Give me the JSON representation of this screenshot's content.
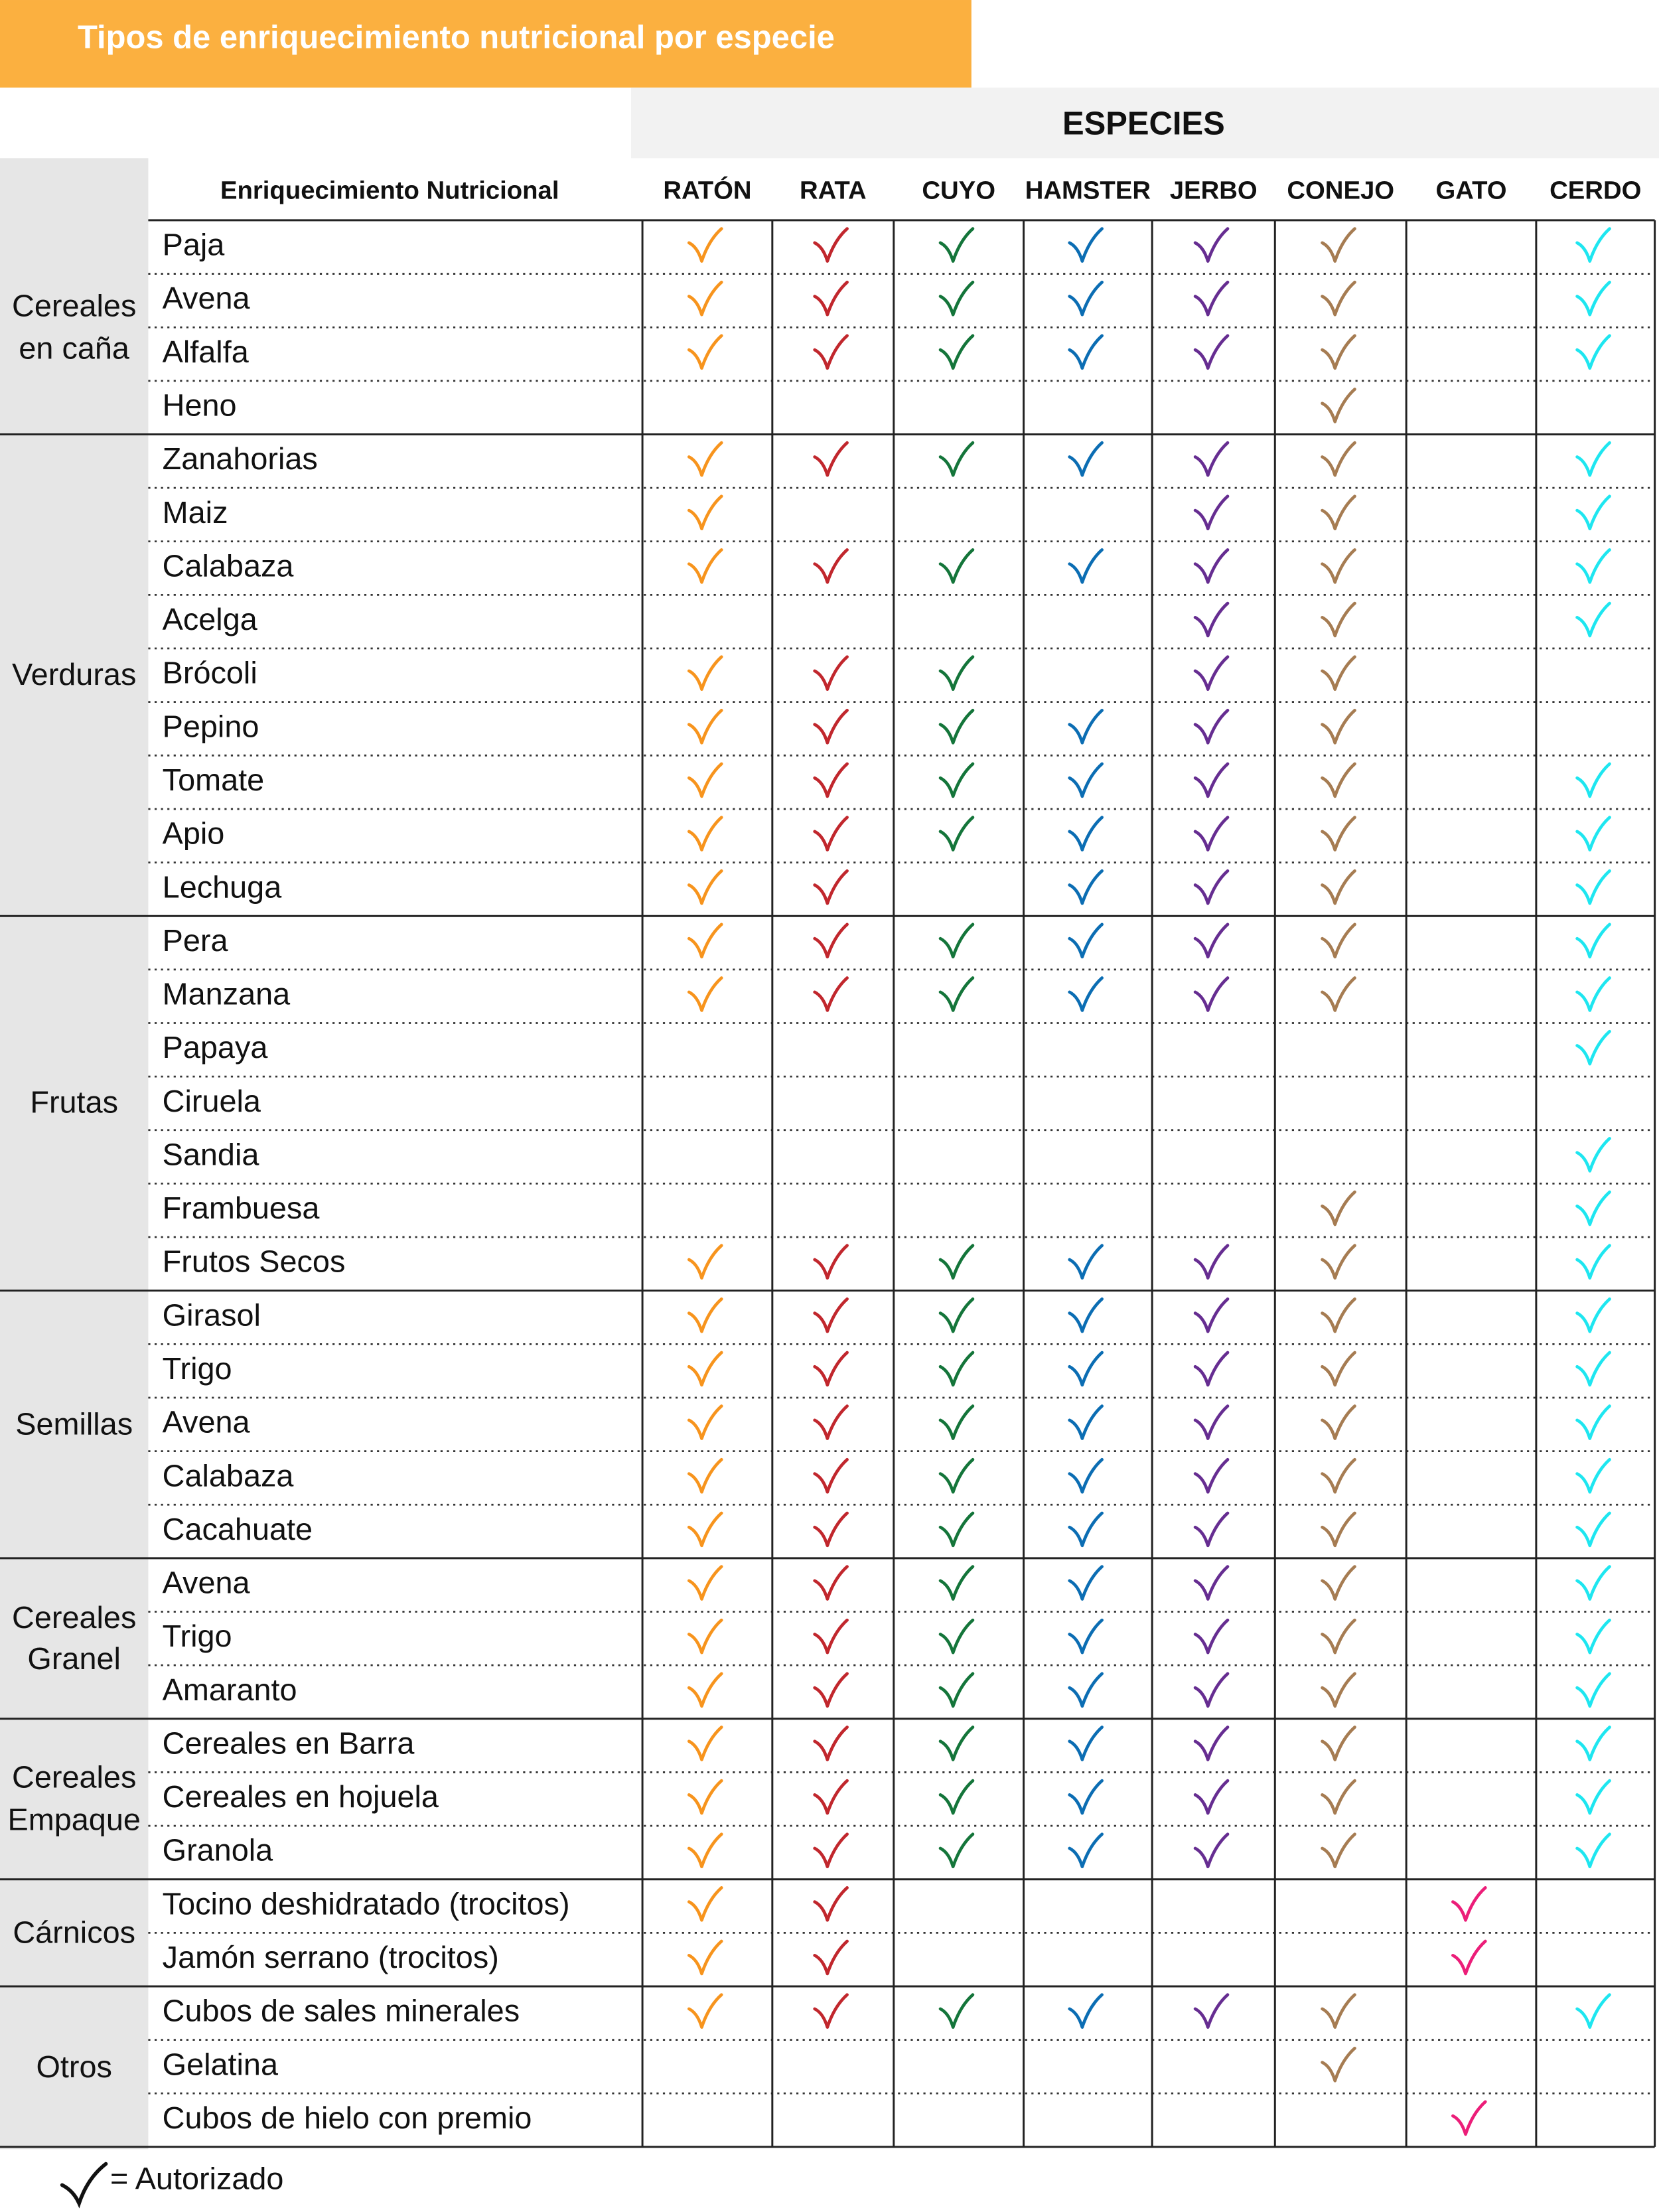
{
  "header": {
    "title": "Tipos de enriquecimiento nutricional por especie",
    "band": "ESPECIES",
    "column_title": "Enriquecimiento Nutricional"
  },
  "species": [
    {
      "name": "RATÓN",
      "color": "#f7941d"
    },
    {
      "name": "RATA",
      "color": "#c1272d"
    },
    {
      "name": "CUYO",
      "color": "#14753a"
    },
    {
      "name": "HAMSTER",
      "color": "#0b6db3"
    },
    {
      "name": "JERBO",
      "color": "#662d91"
    },
    {
      "name": "CONEJO",
      "color": "#a67c52"
    },
    {
      "name": "GATO",
      "color": "#ec1e79"
    },
    {
      "name": "CERDO",
      "color": "#1ee6f0"
    }
  ],
  "groups": [
    {
      "label": "Cereales en caña",
      "rows": [
        {
          "item": "Paja",
          "checks": [
            true,
            true,
            true,
            true,
            true,
            true,
            false,
            true
          ]
        },
        {
          "item": "Avena",
          "checks": [
            true,
            true,
            true,
            true,
            true,
            true,
            false,
            true
          ]
        },
        {
          "item": "Alfalfa",
          "checks": [
            true,
            true,
            true,
            true,
            true,
            true,
            false,
            true
          ]
        },
        {
          "item": "Heno",
          "checks": [
            false,
            false,
            false,
            false,
            false,
            true,
            false,
            false
          ]
        }
      ]
    },
    {
      "label": "Verduras",
      "rows": [
        {
          "item": "Zanahorias",
          "checks": [
            true,
            true,
            true,
            true,
            true,
            true,
            false,
            true
          ]
        },
        {
          "item": "Maiz",
          "checks": [
            true,
            false,
            false,
            false,
            true,
            true,
            false,
            true
          ]
        },
        {
          "item": "Calabaza",
          "checks": [
            true,
            true,
            true,
            true,
            true,
            true,
            false,
            true
          ]
        },
        {
          "item": "Acelga",
          "checks": [
            false,
            false,
            false,
            false,
            true,
            true,
            false,
            true
          ]
        },
        {
          "item": "Brócoli",
          "checks": [
            true,
            true,
            true,
            false,
            true,
            true,
            false,
            false
          ]
        },
        {
          "item": "Pepino",
          "checks": [
            true,
            true,
            true,
            true,
            true,
            true,
            false,
            false
          ]
        },
        {
          "item": "Tomate",
          "checks": [
            true,
            true,
            true,
            true,
            true,
            true,
            false,
            true
          ]
        },
        {
          "item": "Apio",
          "checks": [
            true,
            true,
            true,
            true,
            true,
            true,
            false,
            true
          ]
        },
        {
          "item": "Lechuga",
          "checks": [
            true,
            true,
            false,
            true,
            true,
            true,
            false,
            true
          ]
        }
      ]
    },
    {
      "label": "Frutas",
      "rows": [
        {
          "item": "Pera",
          "checks": [
            true,
            true,
            true,
            true,
            true,
            true,
            false,
            true
          ]
        },
        {
          "item": "Manzana",
          "checks": [
            true,
            true,
            true,
            true,
            true,
            true,
            false,
            true
          ]
        },
        {
          "item": "Papaya",
          "checks": [
            false,
            false,
            false,
            false,
            false,
            false,
            false,
            true
          ]
        },
        {
          "item": "Ciruela",
          "checks": [
            false,
            false,
            false,
            false,
            false,
            false,
            false,
            false
          ]
        },
        {
          "item": "Sandia",
          "checks": [
            false,
            false,
            false,
            false,
            false,
            false,
            false,
            true
          ]
        },
        {
          "item": "Frambuesa",
          "checks": [
            false,
            false,
            false,
            false,
            false,
            true,
            false,
            true
          ]
        },
        {
          "item": "Frutos Secos",
          "checks": [
            true,
            true,
            true,
            true,
            true,
            true,
            false,
            true
          ]
        }
      ]
    },
    {
      "label": "Semillas",
      "rows": [
        {
          "item": "Girasol",
          "checks": [
            true,
            true,
            true,
            true,
            true,
            true,
            false,
            true
          ]
        },
        {
          "item": "Trigo",
          "checks": [
            true,
            true,
            true,
            true,
            true,
            true,
            false,
            true
          ]
        },
        {
          "item": "Avena",
          "checks": [
            true,
            true,
            true,
            true,
            true,
            true,
            false,
            true
          ]
        },
        {
          "item": "Calabaza",
          "checks": [
            true,
            true,
            true,
            true,
            true,
            true,
            false,
            true
          ]
        },
        {
          "item": "Cacahuate",
          "checks": [
            true,
            true,
            true,
            true,
            true,
            true,
            false,
            true
          ]
        }
      ]
    },
    {
      "label": "Cereales Granel",
      "rows": [
        {
          "item": "Avena",
          "checks": [
            true,
            true,
            true,
            true,
            true,
            true,
            false,
            true
          ]
        },
        {
          "item": "Trigo",
          "checks": [
            true,
            true,
            true,
            true,
            true,
            true,
            false,
            true
          ]
        },
        {
          "item": "Amaranto",
          "checks": [
            true,
            true,
            true,
            true,
            true,
            true,
            false,
            true
          ]
        }
      ]
    },
    {
      "label": "Cereales Empaque",
      "rows": [
        {
          "item": "Cereales en Barra",
          "checks": [
            true,
            true,
            true,
            true,
            true,
            true,
            false,
            true
          ]
        },
        {
          "item": "Cereales en hojuela",
          "checks": [
            true,
            true,
            true,
            true,
            true,
            true,
            false,
            true
          ]
        },
        {
          "item": "Granola",
          "checks": [
            true,
            true,
            true,
            true,
            true,
            true,
            false,
            true
          ]
        }
      ]
    },
    {
      "label": "Cárnicos",
      "rows": [
        {
          "item": "Tocino deshidratado (trocitos)",
          "checks": [
            true,
            true,
            false,
            false,
            false,
            false,
            true,
            false
          ]
        },
        {
          "item": "Jamón serrano (trocitos)",
          "checks": [
            true,
            true,
            false,
            false,
            false,
            false,
            true,
            false
          ]
        }
      ]
    },
    {
      "label": "Otros",
      "rows": [
        {
          "item": "Cubos de sales minerales",
          "checks": [
            true,
            true,
            true,
            true,
            true,
            true,
            false,
            true
          ]
        },
        {
          "item": "Gelatina",
          "checks": [
            false,
            false,
            false,
            false,
            false,
            true,
            false,
            false
          ]
        },
        {
          "item": "Cubos de hielo con premio",
          "checks": [
            false,
            false,
            false,
            false,
            false,
            false,
            true,
            false
          ]
        }
      ]
    }
  ],
  "legend": "= Autorizado"
}
